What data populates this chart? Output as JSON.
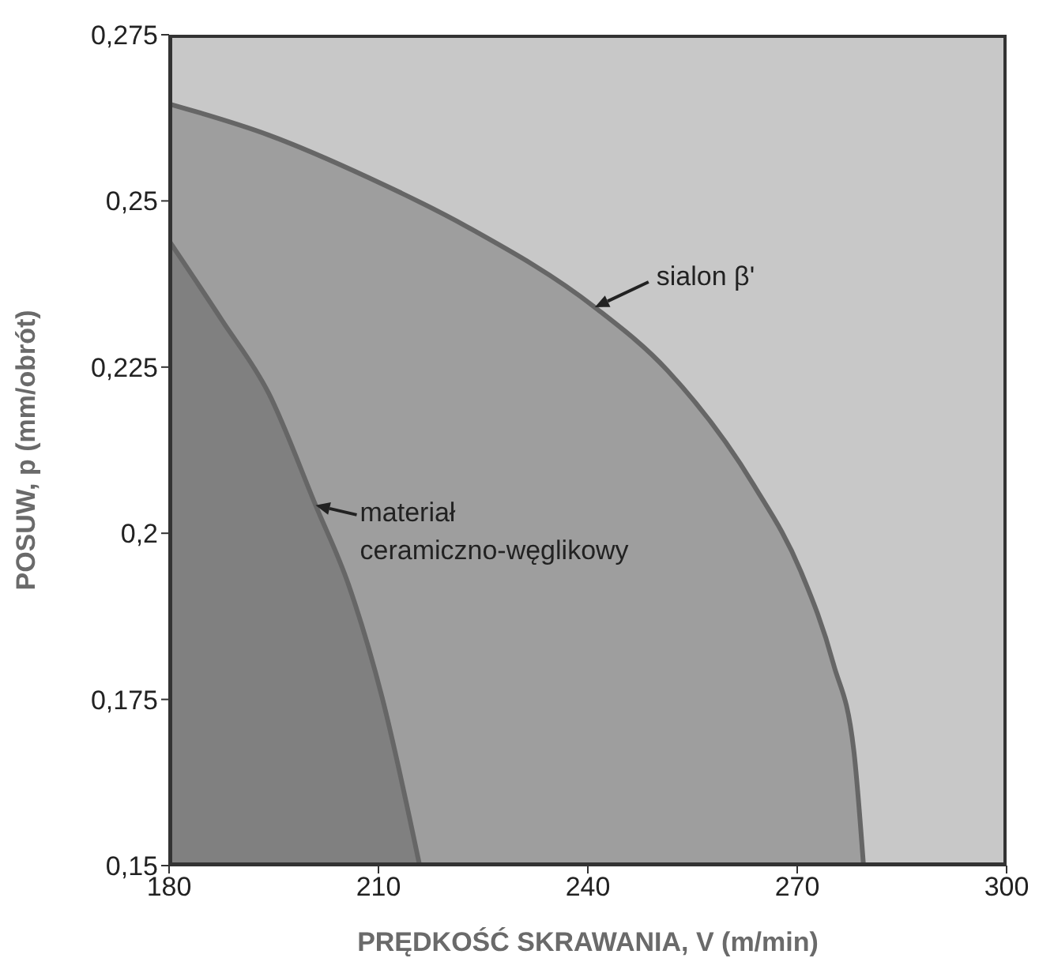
{
  "chart_data": {
    "type": "area",
    "xlabel": "PRĘDKOŚĆ SKRAWANIA, V (m/min)",
    "ylabel": "POSUW, p (mm/obrót)",
    "xlim": [
      180,
      300
    ],
    "xticks": [
      180,
      210,
      240,
      270,
      300
    ],
    "ylim": [
      0.15,
      0.275
    ],
    "yticks": [
      {
        "value": 0.15,
        "label": "0,15"
      },
      {
        "value": 0.175,
        "label": "0,175"
      },
      {
        "value": 0.2,
        "label": "0,2"
      },
      {
        "value": 0.225,
        "label": "0,225"
      },
      {
        "value": 0.25,
        "label": "0,25"
      },
      {
        "value": 0.275,
        "label": "0,275"
      }
    ],
    "grid": false,
    "series": [
      {
        "name": "sialon β'",
        "color": "#9e9e9e",
        "x": [
          180,
          194.3,
          208.6,
          222.9,
          241,
          251.4,
          263.8,
          270.5,
          275.2,
          278.1,
          279.5
        ],
        "values": [
          0.2646,
          0.2599,
          0.2535,
          0.246,
          0.234,
          0.2245,
          0.2072,
          0.1943,
          0.1803,
          0.1674,
          0.15
        ]
      },
      {
        "name": "materiał ceramiczno-węglikowy",
        "color": "#808080",
        "x": [
          180,
          187.6,
          194.3,
          201,
          205.7,
          210.5,
          215.9
        ],
        "values": [
          0.244,
          0.232,
          0.221,
          0.2042,
          0.1923,
          0.1754,
          0.15
        ]
      }
    ]
  }
}
